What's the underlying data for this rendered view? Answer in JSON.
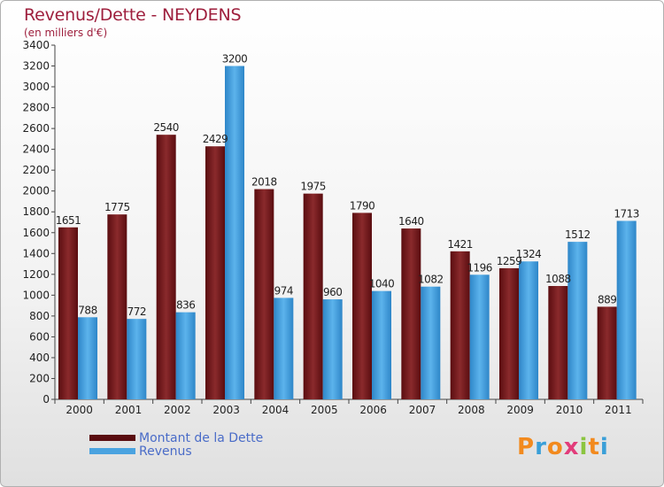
{
  "chart_data": {
    "type": "bar",
    "title": "Revenus/Dette - NEYDENS",
    "subtitle": "(en milliers d'€)",
    "categories": [
      "2000",
      "2001",
      "2002",
      "2003",
      "2004",
      "2005",
      "2006",
      "2007",
      "2008",
      "2009",
      "2010",
      "2011"
    ],
    "series": [
      {
        "name": "Montant de la Dette",
        "color": "#7a1a1e",
        "values": [
          1651,
          1775,
          2540,
          2429,
          2018,
          1975,
          1790,
          1640,
          1421,
          1259,
          1088,
          889
        ]
      },
      {
        "name": "Revenus",
        "color": "#4aa3e0",
        "values": [
          788,
          772,
          836,
          3200,
          974,
          960,
          1040,
          1082,
          1196,
          1324,
          1512,
          1713
        ]
      }
    ],
    "ylim": [
      0,
      3400
    ],
    "yticks": [
      0,
      200,
      400,
      600,
      800,
      1000,
      1200,
      1400,
      1600,
      1800,
      2000,
      2200,
      2400,
      2600,
      2800,
      3000,
      3200,
      3400
    ],
    "xlabel": "",
    "ylabel": "",
    "grid": false,
    "legend_position": "bottom-left"
  },
  "logo": {
    "text": "Proxiti"
  }
}
